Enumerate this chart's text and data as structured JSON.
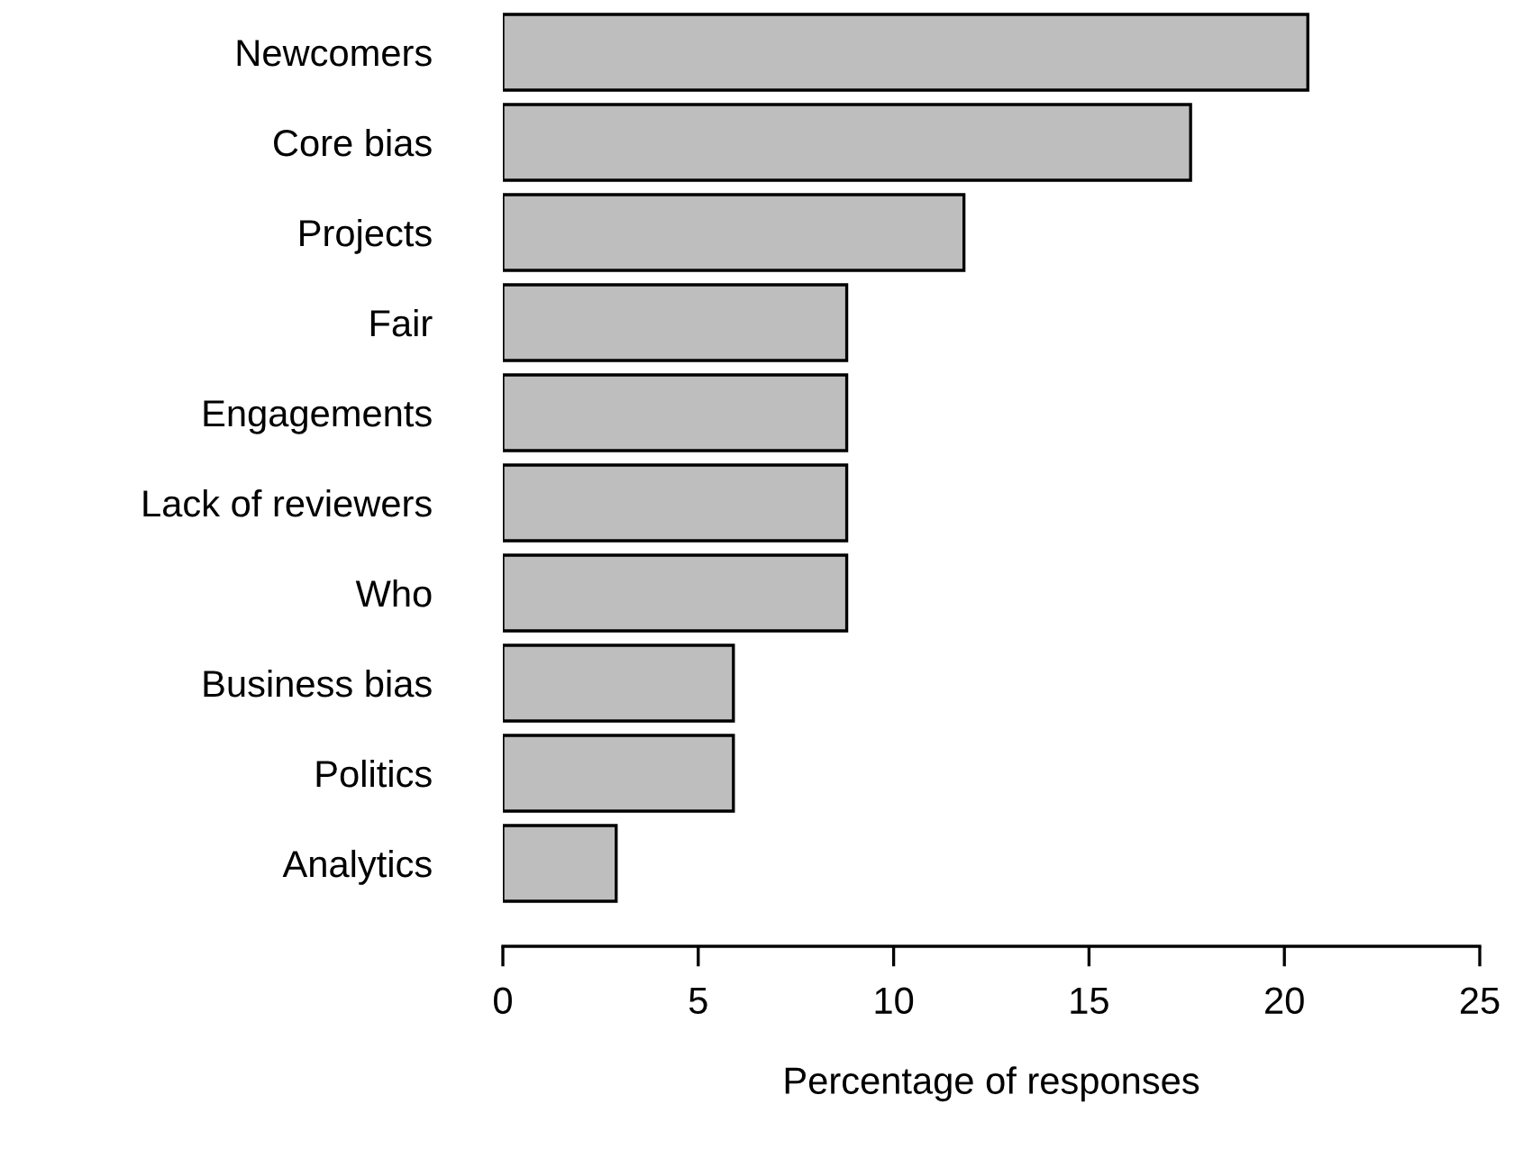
{
  "chart_data": {
    "type": "bar",
    "orientation": "horizontal",
    "xlabel": "Percentage of responses",
    "categories": [
      "Newcomers",
      "Core bias",
      "Projects",
      "Fair",
      "Engagements",
      "Lack of reviewers",
      "Who",
      "Business bias",
      "Politics",
      "Analytics"
    ],
    "values": [
      20.6,
      17.6,
      11.8,
      8.8,
      8.8,
      8.8,
      8.8,
      5.9,
      5.9,
      2.9
    ],
    "color": "#bebebe",
    "xlim": [
      0,
      25
    ],
    "xticks": [
      0,
      5,
      10,
      15,
      20,
      25
    ],
    "grid": false,
    "legend": false
  }
}
